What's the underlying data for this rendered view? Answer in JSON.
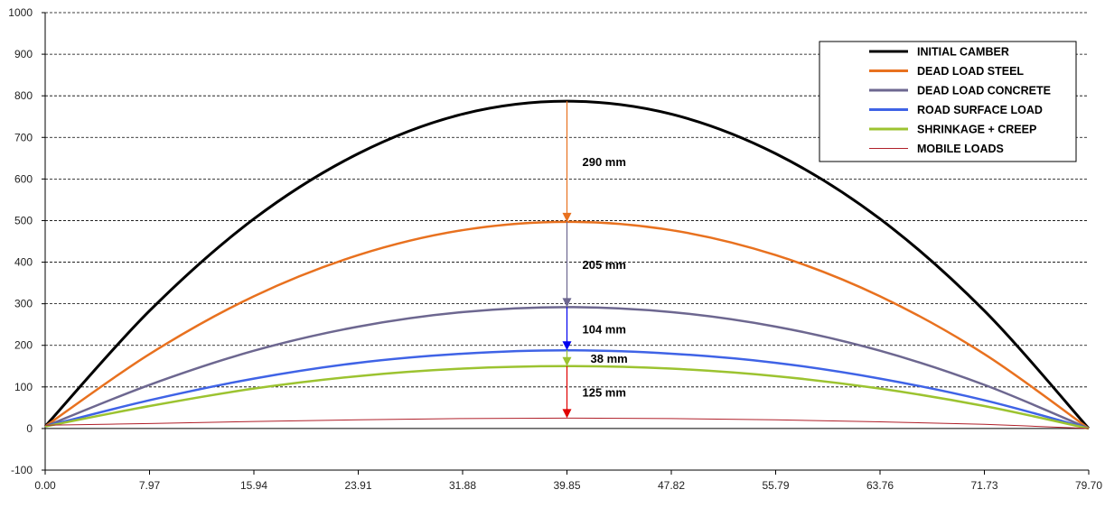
{
  "chart_data": {
    "type": "line",
    "title": "",
    "xlabel": "",
    "ylabel": "",
    "xlim": [
      0,
      79.7
    ],
    "ylim": [
      -100,
      1000
    ],
    "grid": true,
    "legend_position": "top-right",
    "x": [
      0.0,
      7.97,
      15.94,
      23.91,
      31.88,
      39.85,
      47.82,
      55.79,
      63.76,
      71.73,
      79.7
    ],
    "x_tick_labels": [
      "0.00",
      "7.97",
      "15.94",
      "23.91",
      "31.88",
      "39.85",
      "47.82",
      "55.79",
      "63.76",
      "71.73",
      "79.70"
    ],
    "y_ticks": [
      -100,
      0,
      100,
      200,
      300,
      400,
      500,
      600,
      700,
      800,
      900,
      1000
    ],
    "series": [
      {
        "name": "INITIAL CAMBER",
        "color": "#000000",
        "width": 3,
        "values": [
          5,
          283,
          504,
          661,
          756,
          787,
          756,
          661,
          504,
          283,
          0
        ]
      },
      {
        "name": "DEAD LOAD STEEL",
        "color": "#e8711f",
        "width": 2.5,
        "values": [
          5,
          179,
          318,
          417,
          477,
          497,
          477,
          417,
          318,
          179,
          0
        ]
      },
      {
        "name": "DEAD LOAD CONCRETE",
        "color": "#6d6790",
        "width": 2.5,
        "values": [
          5,
          105,
          187,
          245,
          280,
          292,
          280,
          245,
          187,
          105,
          0
        ]
      },
      {
        "name": "ROAD SURFACE LOAD",
        "color": "#3f63e6",
        "width": 2.5,
        "values": [
          5,
          68,
          120,
          158,
          180,
          188,
          180,
          158,
          120,
          68,
          0
        ]
      },
      {
        "name": "SHRINKAGE + CREEP",
        "color": "#9cc330",
        "width": 2.5,
        "values": [
          5,
          54,
          96,
          126,
          144,
          150,
          144,
          126,
          96,
          54,
          0
        ]
      },
      {
        "name": "MOBILE LOADS",
        "color": "#b0202a",
        "width": 1,
        "values": [
          8,
          12,
          17,
          21,
          24,
          25,
          24,
          21,
          16,
          10,
          0
        ]
      }
    ],
    "annotations": [
      {
        "label": "290 mm",
        "x": 39.85,
        "from": 787,
        "to": 497,
        "color": "#e8711f"
      },
      {
        "label": "205 mm",
        "x": 39.85,
        "from": 497,
        "to": 292,
        "color": "#6d6790"
      },
      {
        "label": "104 mm",
        "x": 39.85,
        "from": 292,
        "to": 188,
        "color": "#0000ee"
      },
      {
        "label": "38 mm",
        "x": 39.85,
        "from": 188,
        "to": 150,
        "color": "#9cc330"
      },
      {
        "label": "125 mm",
        "x": 39.85,
        "from": 150,
        "to": 25,
        "color": "#e00000"
      }
    ]
  }
}
